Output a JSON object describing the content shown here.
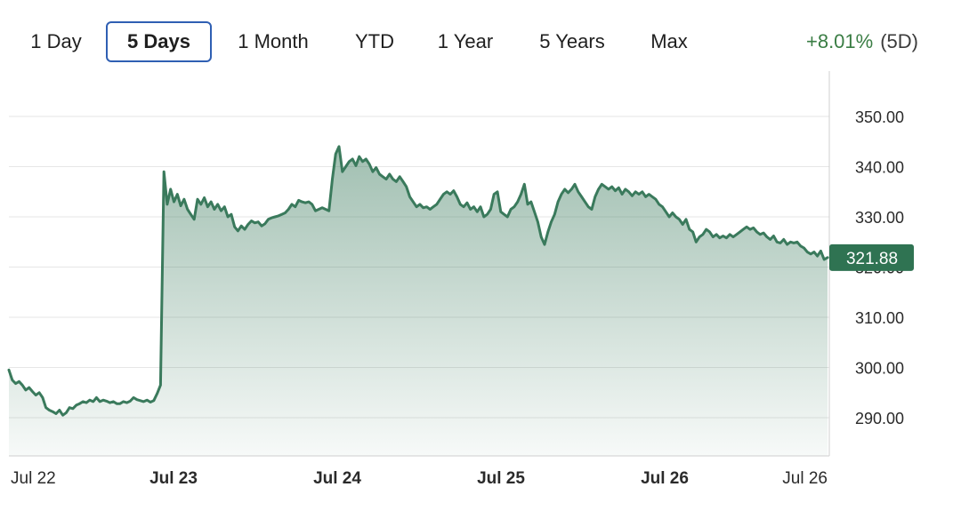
{
  "tabs": [
    {
      "label": "1 Day",
      "active": false
    },
    {
      "label": "5 Days",
      "active": true
    },
    {
      "label": "1 Month",
      "active": false
    },
    {
      "label": "YTD",
      "active": false
    },
    {
      "label": "1 Year",
      "active": false
    },
    {
      "label": "5 Years",
      "active": false
    },
    {
      "label": "Max",
      "active": false
    }
  ],
  "change": {
    "percent": "+8.01%",
    "period": "(5D)"
  },
  "colors": {
    "line": "#3a7a5c",
    "positive": "#3a7d44",
    "accent": "#2f5fb3",
    "badge": "#2f7352"
  },
  "chart_data": {
    "type": "area",
    "title": "",
    "xlabel": "",
    "ylabel": "",
    "ylim": [
      282,
      358
    ],
    "y_ticks": [
      "350.00",
      "340.00",
      "330.00",
      "320.00",
      "310.00",
      "300.00",
      "290.00"
    ],
    "x_ticks": [
      {
        "label": "Jul 22",
        "bold": false
      },
      {
        "label": "Jul 23",
        "bold": true
      },
      {
        "label": "Jul 24",
        "bold": true
      },
      {
        "label": "Jul 25",
        "bold": true
      },
      {
        "label": "Jul 26",
        "bold": true
      },
      {
        "label": "Jul 26",
        "bold": false
      }
    ],
    "grid": true,
    "last_price": "321.88",
    "series": [
      {
        "values": [
          299.5,
          297.5,
          296.8,
          297.2,
          296.5,
          295.5,
          296.0,
          295.2,
          294.5,
          295.0,
          294.0,
          292.0,
          291.5,
          291.2,
          290.8,
          291.5,
          290.5,
          291.0,
          292.0,
          291.8,
          292.5,
          292.8,
          293.2,
          293.0,
          293.5,
          293.2,
          294.0,
          293.2,
          293.5,
          293.3,
          293.0,
          293.2,
          292.8,
          292.8,
          293.2,
          293.0,
          293.3,
          294.0,
          293.6,
          293.4,
          293.2,
          293.5,
          293.1,
          293.4,
          294.8,
          296.5,
          339.0,
          332.5,
          335.5,
          333.0,
          334.5,
          332.2,
          333.5,
          331.5,
          330.5,
          329.5,
          333.5,
          332.5,
          333.8,
          332.0,
          333.0,
          331.5,
          332.5,
          331.2,
          332.0,
          330.0,
          330.5,
          328.0,
          327.2,
          328.2,
          327.5,
          328.5,
          329.2,
          328.8,
          329.0,
          328.2,
          328.6,
          329.5,
          329.8,
          330.0,
          330.2,
          330.5,
          330.8,
          331.5,
          332.5,
          332.0,
          333.3,
          333.0,
          332.8,
          333.0,
          332.5,
          331.2,
          331.5,
          331.8,
          331.5,
          331.2,
          337.5,
          342.5,
          344.0,
          339.0,
          340.0,
          341.0,
          341.5,
          340.2,
          342.0,
          341.0,
          341.5,
          340.5,
          339.0,
          339.8,
          338.5,
          338.0,
          337.5,
          338.5,
          337.5,
          337.0,
          338.0,
          337.0,
          336.0,
          334.0,
          333.0,
          332.0,
          332.5,
          331.8,
          332.0,
          331.5,
          332.0,
          332.5,
          333.5,
          334.5,
          335.0,
          334.5,
          335.2,
          334.0,
          332.5,
          332.0,
          332.8,
          331.5,
          332.0,
          331.0,
          332.0,
          330.0,
          330.5,
          331.5,
          334.5,
          335.0,
          331.0,
          330.5,
          330.0,
          331.5,
          332.0,
          333.0,
          334.5,
          336.5,
          332.5,
          333.0,
          331.0,
          329.0,
          326.0,
          324.5,
          327.0,
          329.0,
          330.5,
          333.0,
          334.5,
          335.5,
          334.8,
          335.5,
          336.5,
          335.0,
          334.0,
          333.0,
          332.0,
          331.5,
          334.0,
          335.5,
          336.5,
          336.0,
          335.5,
          336.0,
          335.2,
          335.8,
          334.5,
          335.5,
          335.0,
          334.2,
          335.0,
          334.5,
          335.0,
          334.0,
          334.5,
          334.0,
          333.5,
          332.5,
          332.0,
          331.0,
          330.0,
          330.8,
          330.0,
          329.5,
          328.5,
          329.5,
          327.5,
          327.0,
          325.0,
          326.0,
          326.5,
          327.5,
          327.0,
          326.0,
          326.5,
          325.8,
          326.2,
          325.8,
          326.5,
          326.0,
          326.5,
          327.0,
          327.5,
          328.0,
          327.5,
          327.8,
          327.0,
          326.5,
          326.8,
          326.0,
          325.5,
          326.2,
          325.0,
          324.8,
          325.5,
          324.5,
          325.0,
          324.8,
          325.0,
          324.2,
          323.8,
          323.0,
          322.6,
          323.0,
          322.2,
          323.2,
          321.5,
          321.9
        ]
      }
    ]
  }
}
